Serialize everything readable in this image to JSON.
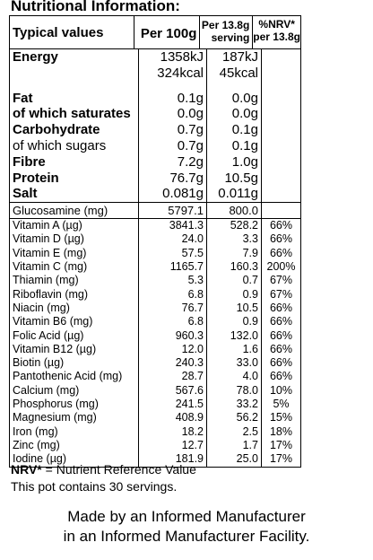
{
  "title": "Nutritional Information:",
  "header": {
    "col1": "Typical values",
    "col2": "Per 100g",
    "col3_line1": "Per 13.8g",
    "col3_line2": "serving",
    "col4_line1": "%NRV*",
    "col4_line2": "per 13.8g"
  },
  "energy": {
    "name": "Energy",
    "kj_100": "1358kJ",
    "kj_serv": "187kJ",
    "kcal_100": "324kcal",
    "kcal_serv": "45kcal"
  },
  "main_rows": [
    {
      "name": "Fat",
      "per100": "0.1g",
      "serving": "0.0g",
      "bold": true
    },
    {
      "name": "of which saturates",
      "per100": "0.0g",
      "serving": "0.0g",
      "bold": true
    },
    {
      "name": "Carbohydrate",
      "per100": "0.7g",
      "serving": "0.1g",
      "bold": true
    },
    {
      "name": "of which sugars",
      "per100": "0.7g",
      "serving": "0.1g",
      "bold": false
    },
    {
      "name": "Fibre",
      "per100": "7.2g",
      "serving": "1.0g",
      "bold": true
    },
    {
      "name": "Protein",
      "per100": "76.7g",
      "serving": "10.5g",
      "bold": true
    },
    {
      "name": "Salt",
      "per100": "0.081g",
      "serving": "0.011g",
      "bold": true
    }
  ],
  "glucosamine": {
    "name": "Glucosamine (mg)",
    "per100": "5797.1",
    "serving": "800.0"
  },
  "vitamins": [
    {
      "name": "Vitamin A (µg)",
      "per100": "3841.3",
      "serving": "528.2",
      "nrv": "66%"
    },
    {
      "name": "Vitamin D (µg)",
      "per100": "24.0",
      "serving": "3.3",
      "nrv": "66%"
    },
    {
      "name": "Vitamin E (mg)",
      "per100": "57.5",
      "serving": "7.9",
      "nrv": "66%"
    },
    {
      "name": "Vitamin C (mg)",
      "per100": "1165.7",
      "serving": "160.3",
      "nrv": "200%"
    },
    {
      "name": "Thiamin (mg)",
      "per100": "5.3",
      "serving": "0.7",
      "nrv": "67%"
    },
    {
      "name": "Riboflavin (mg)",
      "per100": "6.8",
      "serving": "0.9",
      "nrv": "67%"
    },
    {
      "name": "Niacin (mg)",
      "per100": "76.7",
      "serving": "10.5",
      "nrv": "66%"
    },
    {
      "name": "Vitamin B6 (mg)",
      "per100": "6.8",
      "serving": "0.9",
      "nrv": "66%"
    },
    {
      "name": "Folic Acid (µg)",
      "per100": "960.3",
      "serving": "132.0",
      "nrv": "66%"
    },
    {
      "name": "Vitamin B12 (µg)",
      "per100": "12.0",
      "serving": "1.6",
      "nrv": "66%"
    },
    {
      "name": "Biotin (µg)",
      "per100": "240.3",
      "serving": "33.0",
      "nrv": "66%"
    },
    {
      "name": "Pantothenic Acid (mg)",
      "per100": "28.7",
      "serving": "4.0",
      "nrv": "66%"
    },
    {
      "name": "Calcium (mg)",
      "per100": "567.6",
      "serving": "78.0",
      "nrv": "10%"
    },
    {
      "name": "Phosphorus (mg)",
      "per100": "241.5",
      "serving": "33.2",
      "nrv": "5%"
    },
    {
      "name": "Magnesium (mg)",
      "per100": "408.9",
      "serving": "56.2",
      "nrv": "15%"
    },
    {
      "name": "Iron (mg)",
      "per100": "18.2",
      "serving": "2.5",
      "nrv": "18%"
    },
    {
      "name": "Zinc (mg)",
      "per100": "12.7",
      "serving": "1.7",
      "nrv": "17%"
    },
    {
      "name": "Iodine (µg)",
      "per100": "181.9",
      "serving": "25.0",
      "nrv": "17%"
    }
  ],
  "nrv_note": {
    "bold": "NRV*",
    "rest": " = Nutrient Reference Value"
  },
  "servings_note": "This pot contains 30 servings.",
  "footer_line1": "Made by an Informed Manufacturer",
  "footer_line2": "in an Informed Manufacturer Facility."
}
